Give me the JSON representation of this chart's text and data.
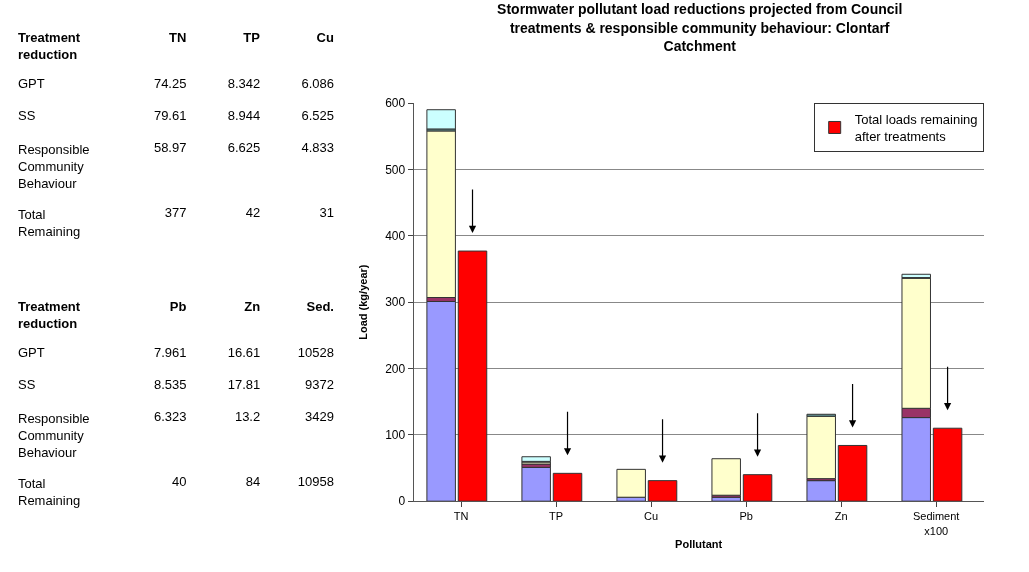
{
  "chart_data": [
    {
      "type": "other",
      "title": "Treatment reduction",
      "categories": [
        "TN",
        "TP",
        "Cu"
      ],
      "y_categories": [
        "GPT",
        "SS",
        "Responsible Community Behaviour",
        "Total Remaining"
      ],
      "cell_labels": [
        [
          "74.25",
          "8.342",
          "6.086"
        ],
        [
          "79.61",
          "8.944",
          "6.525"
        ],
        [
          "58.97",
          "6.625",
          "4.833"
        ],
        [
          "377",
          "42",
          "31"
        ]
      ]
    },
    {
      "type": "other",
      "title": "Treatment reduction",
      "categories": [
        "Pb",
        "Zn",
        "Sed."
      ],
      "y_categories": [
        "GPT",
        "SS",
        "Responsible Community Behaviour",
        "Total Remaining"
      ],
      "cell_labels": [
        [
          "7.961",
          "16.61",
          "10528"
        ],
        [
          "8.535",
          "17.81",
          "9372"
        ],
        [
          "6.323",
          "13.2",
          "3429"
        ],
        [
          "40",
          "84",
          "10958"
        ]
      ]
    },
    {
      "type": "bar",
      "title": "Stormwater pollutant load reductions projected from Council treatments & responsible community behaviour: Clontarf Catchment",
      "xlabel": "Pollutant",
      "ylabel": "Load (kg/year)",
      "categories": [
        "TN",
        "TP",
        "Cu",
        "Pb",
        "Zn",
        "Sediment x100"
      ],
      "series": [
        {
          "color": "#9999ff",
          "base": [
            0,
            0,
            0,
            0,
            0,
            0
          ],
          "values": [
            301,
            51,
            6,
            6,
            31,
            126
          ]
        },
        {
          "color": "#993366",
          "base": [
            301,
            51,
            null,
            6,
            31,
            126
          ],
          "values": [
            6,
            5,
            null,
            3,
            3,
            14
          ]
        },
        {
          "color": "#ffffcc",
          "base": [
            307,
            56,
            6,
            9,
            34,
            140
          ],
          "values": [
            251,
            3,
            42,
            55,
            94,
            196
          ]
        },
        {
          "color": "#669999",
          "base": [
            558,
            59,
            null,
            null,
            128,
            336
          ],
          "values": [
            3,
            1,
            null,
            null,
            3,
            1
          ]
        },
        {
          "color": "#ccffff",
          "base": [
            561,
            60,
            null,
            null,
            null,
            337
          ],
          "values": [
            29,
            7,
            null,
            null,
            null,
            5
          ]
        },
        {
          "name": "Total loads remaining after treatments",
          "color": "#ff0000",
          "values": [
            377,
            42,
            31,
            40,
            84,
            110
          ]
        }
      ],
      "ylim": [
        0,
        600
      ],
      "yticks": [
        0,
        100,
        200,
        300,
        400,
        500,
        600
      ],
      "grid": "y",
      "legend": "top right"
    }
  ]
}
